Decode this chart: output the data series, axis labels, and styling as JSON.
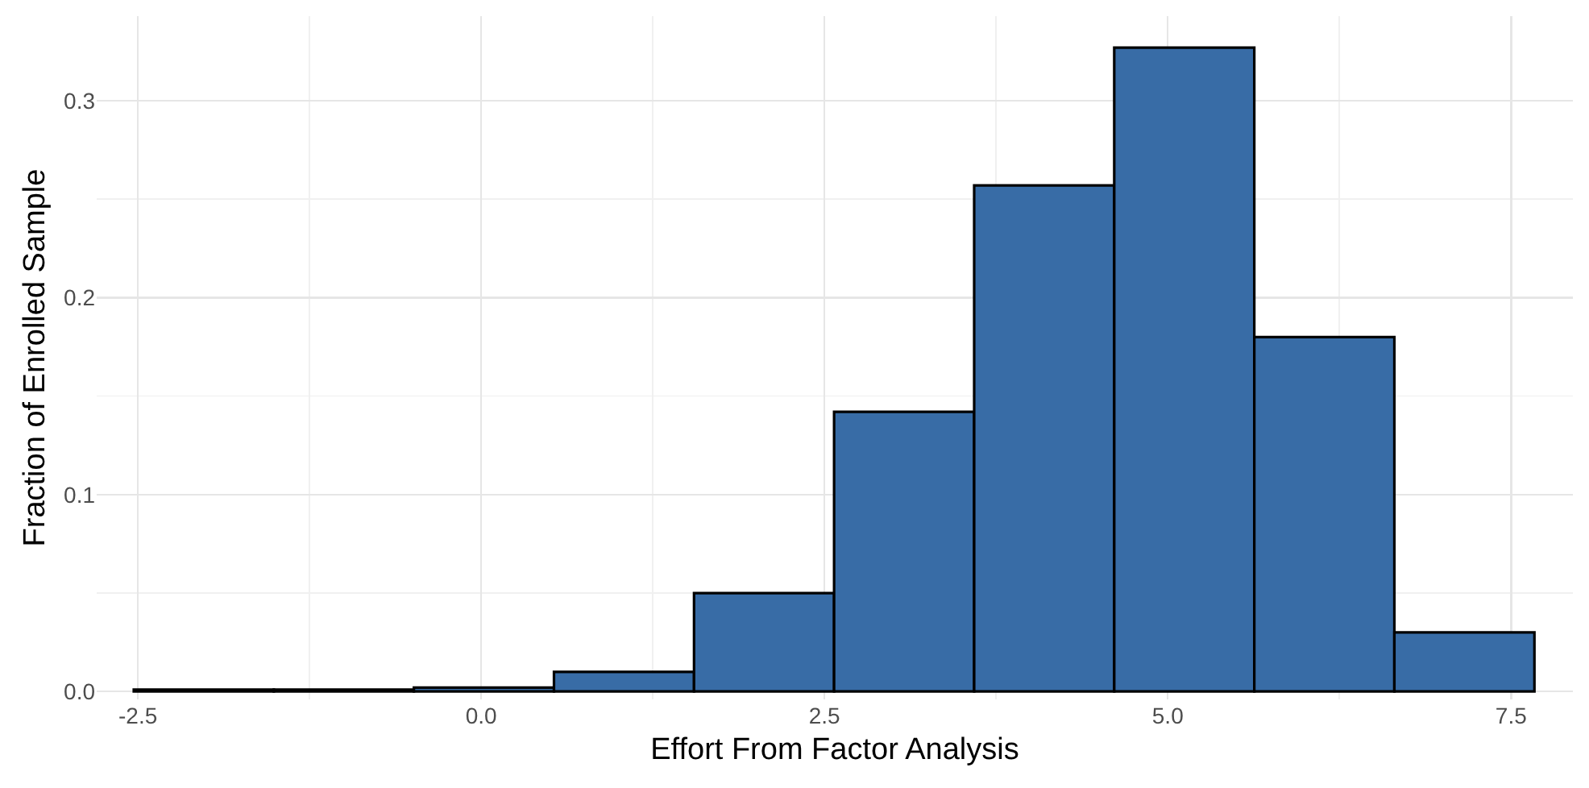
{
  "chart_data": {
    "type": "histogram",
    "xlabel": "Effort From Factor Analysis",
    "ylabel": "Fraction of Enrolled Sample",
    "bins": [
      -2.53,
      -1.51,
      -0.49,
      0.53,
      1.55,
      2.57,
      3.59,
      4.61,
      5.63,
      6.65,
      7.67
    ],
    "values": [
      0.001,
      0.001,
      0.002,
      0.01,
      0.05,
      0.142,
      0.257,
      0.327,
      0.18,
      0.03
    ],
    "color": "#386ca6",
    "xlim": [
      -2.8,
      7.95
    ],
    "ylim": [
      -0.004,
      0.343
    ],
    "xticks": [
      {
        "value": -2.5,
        "label": "-2.5"
      },
      {
        "value": 0,
        "label": "0.0"
      },
      {
        "value": 2.5,
        "label": "2.5"
      },
      {
        "value": 5,
        "label": "5.0"
      },
      {
        "value": 7.5,
        "label": "7.5"
      }
    ],
    "yticks": [
      {
        "value": 0,
        "label": "0.0"
      },
      0.1,
      0.2,
      0.3
    ],
    "grid": true,
    "legend": false
  }
}
